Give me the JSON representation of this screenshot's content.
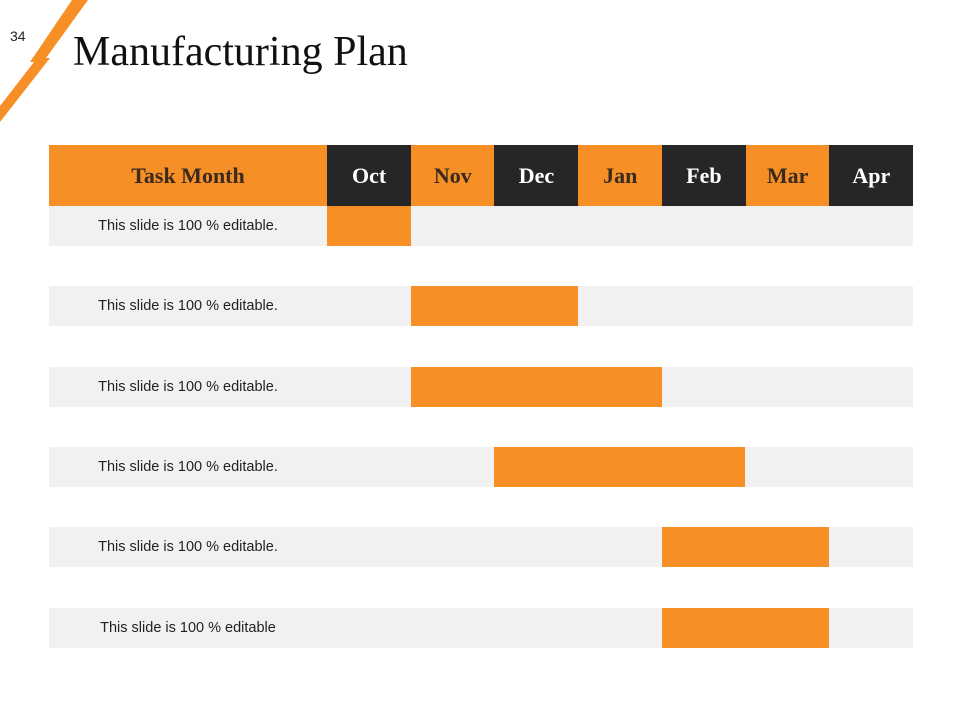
{
  "slide": {
    "number": "34",
    "title": "Manufacturing Plan"
  },
  "colors": {
    "accent": "#f78f27",
    "dark": "#262626",
    "row_band": "#f1f1f1",
    "header_dark_text": "#ffffff",
    "header_orange_text": "#3a2a1e"
  },
  "chart_data": {
    "type": "table",
    "subtype": "gantt",
    "header_label": "Task Month",
    "months": [
      "Oct",
      "Nov",
      "Dec",
      "Jan",
      "Feb",
      "Mar",
      "Apr"
    ],
    "tasks": [
      {
        "label": "This slide is 100 % editable.",
        "start": "Oct",
        "end": "Oct"
      },
      {
        "label": "This slide is 100 % editable.",
        "start": "Nov",
        "end": "Dec"
      },
      {
        "label": "This slide is 100 % editable.",
        "start": "Nov",
        "end": "Jan"
      },
      {
        "label": "This slide is 100 % editable.",
        "start": "Dec",
        "end": "Feb"
      },
      {
        "label": "This slide is 100 % editable.",
        "start": "Feb",
        "end": "Mar"
      },
      {
        "label": "This slide is 100 % editable",
        "start": "Feb",
        "end": "Mar"
      }
    ]
  }
}
